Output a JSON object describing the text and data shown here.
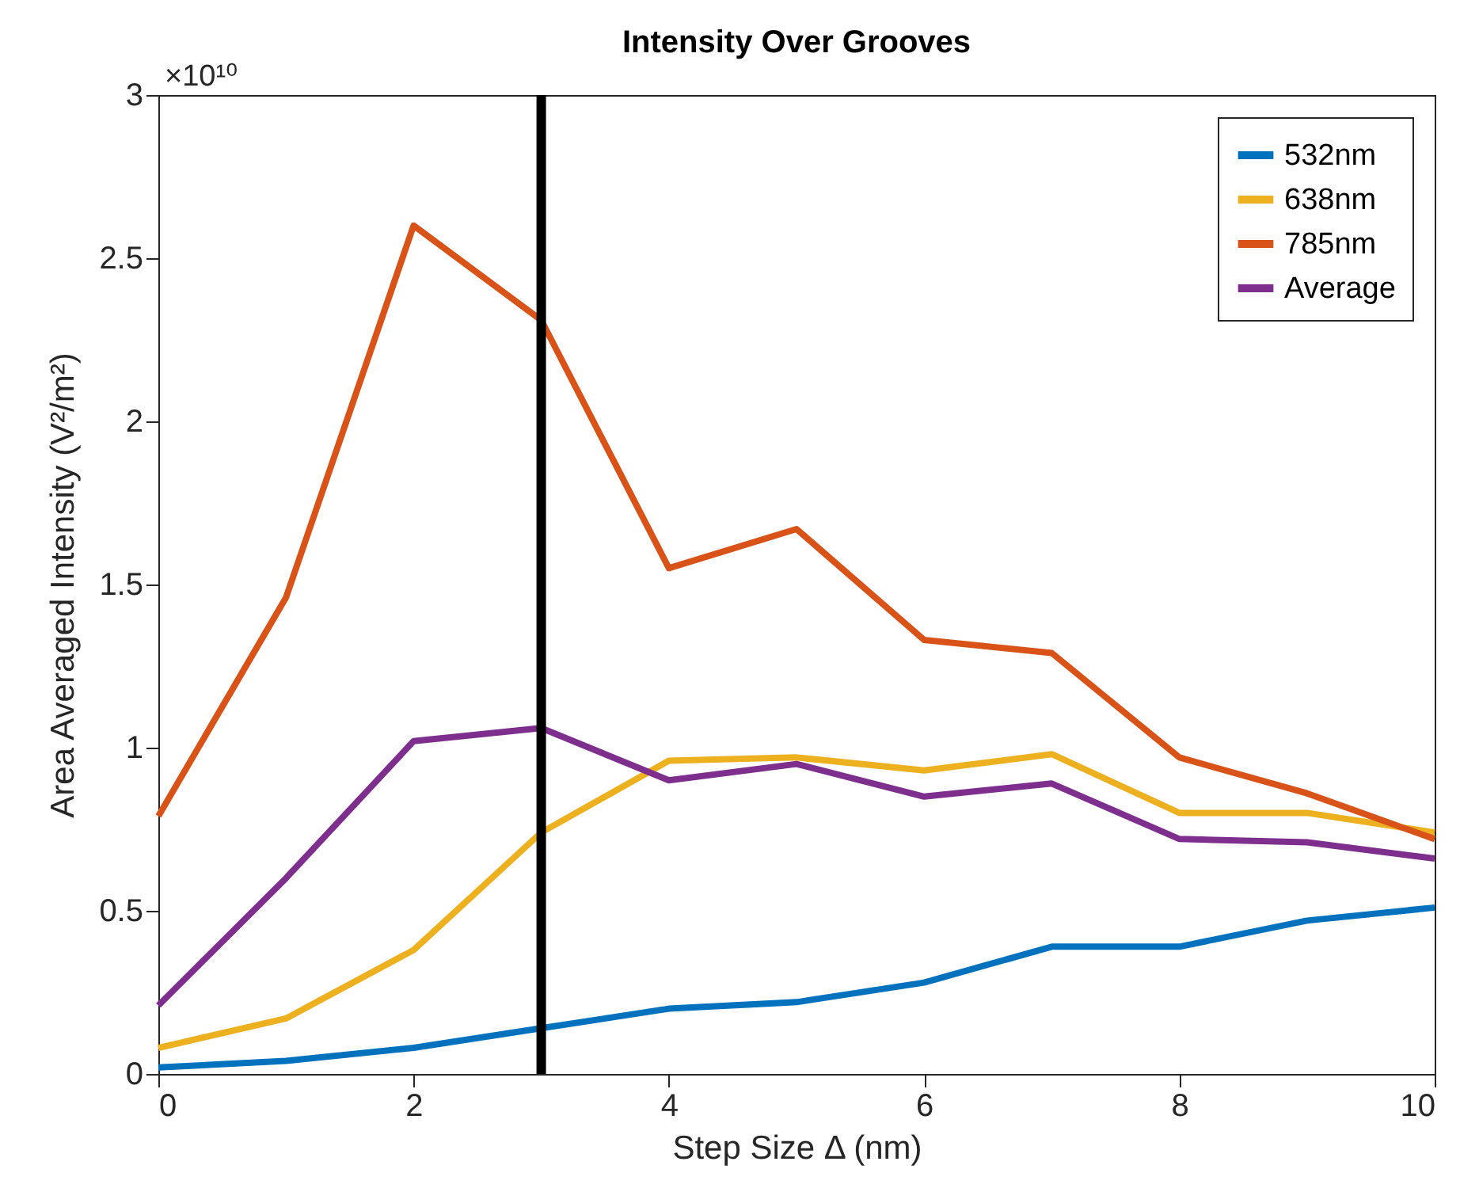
{
  "chart_data": {
    "type": "line",
    "title": "Intensity Over Grooves",
    "xlabel": "Step Size Δ (nm)",
    "ylabel": "Area Averaged Intensity (V²/m²)",
    "x": [
      0,
      1,
      2,
      3,
      4,
      5,
      6,
      7,
      8,
      9,
      10
    ],
    "series": [
      {
        "name": "532nm",
        "color": "#0072bd",
        "values": [
          0.02,
          0.04,
          0.08,
          0.14,
          0.2,
          0.22,
          0.28,
          0.39,
          0.39,
          0.47,
          0.51
        ]
      },
      {
        "name": "638nm",
        "color": "#edb120",
        "values": [
          0.08,
          0.17,
          0.38,
          0.74,
          0.96,
          0.97,
          0.93,
          0.98,
          0.8,
          0.8,
          0.74
        ]
      },
      {
        "name": "785nm",
        "color": "#d95319",
        "values": [
          0.79,
          1.46,
          2.6,
          2.31,
          1.55,
          1.67,
          1.33,
          1.29,
          0.97,
          0.86,
          0.72
        ]
      },
      {
        "name": "Average",
        "color": "#7e2f8e",
        "values": [
          0.21,
          0.6,
          1.02,
          1.06,
          0.9,
          0.95,
          0.85,
          0.89,
          0.72,
          0.71,
          0.66
        ]
      }
    ],
    "xlim": [
      0,
      10
    ],
    "xticks": [
      0,
      2,
      4,
      6,
      8,
      10
    ],
    "ylim": [
      0,
      3
    ],
    "yticks": [
      0,
      0.5,
      1,
      1.5,
      2,
      2.5,
      3
    ],
    "ref_lines": [
      {
        "axis": "x",
        "value": 3,
        "color": "#000000",
        "line_style": "solid"
      }
    ],
    "annotations": [
      "×10¹⁰"
    ],
    "grid": false,
    "legend": "top right",
    "marker": "none",
    "line_style": "solid"
  }
}
